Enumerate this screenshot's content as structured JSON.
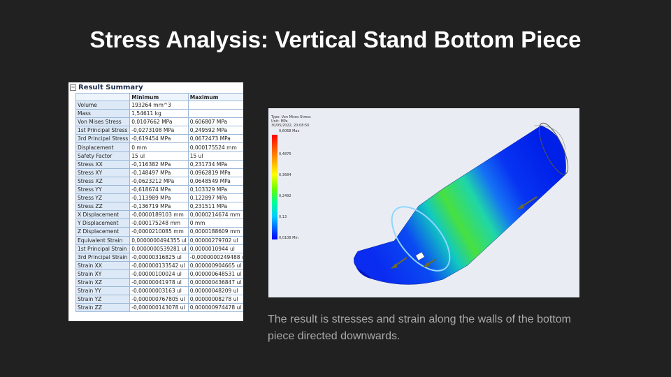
{
  "title": "Stress Analysis: Vertical Stand Bottom Piece",
  "result_summary": {
    "heading": "Result Summary",
    "columns": [
      "",
      "Minimum",
      "Maximum"
    ],
    "rows": [
      {
        "label": "Volume",
        "min": "193264 mm^3",
        "max": ""
      },
      {
        "label": "Mass",
        "min": "1,54611 kg",
        "max": ""
      },
      {
        "label": "Von Mises Stress",
        "min": "0,0107662 MPa",
        "max": "0,606807 MPa"
      },
      {
        "label": "1st Principal Stress",
        "min": "-0,0273108 MPa",
        "max": "0,249592 MPa"
      },
      {
        "label": "3rd Principal Stress",
        "min": "-0,619454 MPa",
        "max": "0,0672473 MPa"
      },
      {
        "label": "Displacement",
        "min": "0 mm",
        "max": "0,000175524 mm"
      },
      {
        "label": "Safety Factor",
        "min": "15 ul",
        "max": "15 ul"
      },
      {
        "label": "Stress XX",
        "min": "-0,116382 MPa",
        "max": "0,231734 MPa"
      },
      {
        "label": "Stress XY",
        "min": "-0,148497 MPa",
        "max": "0,0962819 MPa"
      },
      {
        "label": "Stress XZ",
        "min": "-0,0623212 MPa",
        "max": "0,0648549 MPa"
      },
      {
        "label": "Stress YY",
        "min": "-0,618674 MPa",
        "max": "0,103329 MPa"
      },
      {
        "label": "Stress YZ",
        "min": "-0,113989 MPa",
        "max": "0,122897 MPa"
      },
      {
        "label": "Stress ZZ",
        "min": "-0,136719 MPa",
        "max": "0,231511 MPa"
      },
      {
        "label": "X Displacement",
        "min": "-0,0000189103 mm",
        "max": "0,0000214674 mm"
      },
      {
        "label": "Y Displacement",
        "min": "-0,000175248 mm",
        "max": "0 mm"
      },
      {
        "label": "Z Displacement",
        "min": "-0,0000210085 mm",
        "max": "0,0000188609 mm"
      },
      {
        "label": "Equivalent Strain",
        "min": "0,0000000494355 ul",
        "max": "0,00000279702 ul"
      },
      {
        "label": "1st Principal Strain",
        "min": "0,0000000539281 ul",
        "max": "0,0000010944 ul"
      },
      {
        "label": "3rd Principal Strain",
        "min": "-0,00000316825 ul",
        "max": "-0,0000000249488 ul"
      },
      {
        "label": "Strain XX",
        "min": "-0,000000133542 ul",
        "max": "0,000000904665 ul"
      },
      {
        "label": "Strain XY",
        "min": "-0,00000100024 ul",
        "max": "0,000000648531 ul"
      },
      {
        "label": "Strain XZ",
        "min": "-0,00000041978 ul",
        "max": "0,000000436847 ul"
      },
      {
        "label": "Strain YY",
        "min": "-0,00000003163 ul",
        "max": "0,00000048209 ul"
      },
      {
        "label": "Strain YZ",
        "min": "-0,000000767805 ul",
        "max": "0,00000008278 ul"
      },
      {
        "label": "Strain ZZ",
        "min": "-0,000000143078 ul",
        "max": "0,000000974478 ul"
      }
    ]
  },
  "simulation": {
    "meta": [
      "Type: Von Mises Stress",
      "Unit: MPa",
      "30/05/2022, 20:08:50"
    ],
    "legend": [
      "0,6068 Max",
      "0,4876",
      "0,3684",
      "0,2492",
      "0,13",
      "0,0108 Min"
    ]
  },
  "caption": "The result is stresses and strain along the walls of the bottom piece directed downwards."
}
